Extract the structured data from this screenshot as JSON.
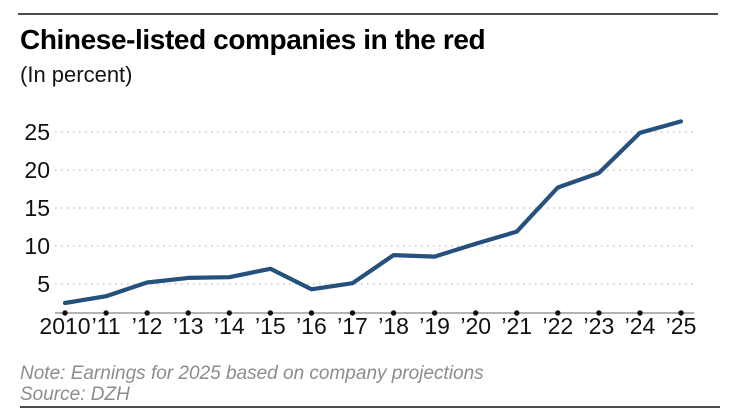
{
  "header": {
    "title": "Chinese-listed companies in the red",
    "subtitle": "(In percent)"
  },
  "footer": {
    "note": "Note: Earnings for 2025 based on company projections",
    "source": "Source: DZH"
  },
  "colors": {
    "line": "#25517c",
    "grid": "#c9c9c9",
    "axis": "#9a9a9a",
    "tick_dot": "#111111",
    "tick_text": "#111111",
    "footnote_gray": "#8c8c8c",
    "rule_gray": "#4c4c4c"
  },
  "chart_data": {
    "type": "line",
    "title": "Chinese-listed companies in the red",
    "units_label": "(In percent)",
    "xlabel": "",
    "ylabel": "",
    "categories": [
      "2010",
      "’11",
      "’12",
      "’13",
      "’14",
      "’15",
      "’16",
      "’17",
      "’18",
      "’19",
      "’20",
      "’21",
      "’22",
      "’23",
      "’24",
      "’25"
    ],
    "values": [
      2.5,
      3.4,
      5.2,
      5.8,
      5.9,
      7.0,
      4.3,
      5.1,
      8.8,
      8.6,
      10.3,
      11.9,
      17.7,
      19.6,
      24.9,
      26.4
    ],
    "yticks": [
      5,
      10,
      15,
      20,
      25
    ],
    "ylim": [
      1,
      27.5
    ],
    "grid": "dotted-horizontal",
    "legend": "none",
    "annotations": [
      "Earnings for 2025 based on company projections"
    ]
  }
}
